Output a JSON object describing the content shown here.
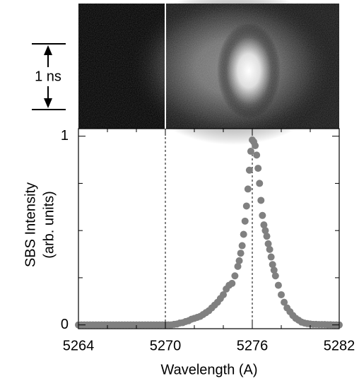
{
  "chart_data": {
    "type": "scatter",
    "xlabel": "Wavelength (A)",
    "ylabel": [
      "SBS Intensity",
      "(arb. units)"
    ],
    "streak_label": "1 ns",
    "x": [
      5264,
      5264.2,
      5264.4,
      5264.6,
      5264.8,
      5265,
      5265.2,
      5265.4,
      5265.6,
      5265.8,
      5266,
      5266.2,
      5266.4,
      5266.6,
      5266.8,
      5267,
      5267.2,
      5267.4,
      5267.6,
      5267.8,
      5268,
      5268.2,
      5268.4,
      5268.6,
      5268.8,
      5269,
      5269.2,
      5269.4,
      5269.6,
      5269.8,
      5270,
      5270.2,
      5270.4,
      5270.6,
      5270.8,
      5271,
      5271.2,
      5271.4,
      5271.6,
      5271.8,
      5272,
      5272.2,
      5272.4,
      5272.6,
      5272.8,
      5273,
      5273.2,
      5273.4,
      5273.6,
      5273.8,
      5274,
      5274.2,
      5274.4,
      5274.6,
      5274.8,
      5275,
      5275.1,
      5275.2,
      5275.3,
      5275.4,
      5275.5,
      5275.6,
      5275.7,
      5275.8,
      5275.9,
      5276,
      5276.1,
      5276.2,
      5276.3,
      5276.4,
      5276.5,
      5276.6,
      5276.7,
      5276.8,
      5276.9,
      5277,
      5277.1,
      5277.2,
      5277.3,
      5277.4,
      5277.5,
      5277.6,
      5277.8,
      5278,
      5278.2,
      5278.4,
      5278.6,
      5278.8,
      5279,
      5279.2,
      5279.4,
      5279.6,
      5279.8,
      5280,
      5280.2,
      5280.4,
      5280.6,
      5280.8,
      5281,
      5281.2,
      5281.4,
      5281.6,
      5281.8,
      5282
    ],
    "series": [
      {
        "color": "#808080",
        "values": [
          0,
          0,
          0,
          0,
          0,
          0,
          0,
          0,
          0,
          0,
          0,
          0,
          0,
          0,
          0,
          0,
          0,
          0,
          0,
          0,
          0,
          0,
          0,
          0,
          0,
          0,
          0,
          0,
          0,
          0,
          0,
          0,
          0,
          0.003,
          0.005,
          0.01,
          0.012,
          0.018,
          0.022,
          0.03,
          0.035,
          0.04,
          0.045,
          0.055,
          0.065,
          0.075,
          0.09,
          0.105,
          0.12,
          0.14,
          0.16,
          0.19,
          0.21,
          0.22,
          0.26,
          0.31,
          0.34,
          0.38,
          0.42,
          0.48,
          0.55,
          0.63,
          0.72,
          0.82,
          0.92,
          0.98,
          0.97,
          0.95,
          0.9,
          0.83,
          0.75,
          0.66,
          0.58,
          0.53,
          0.5,
          0.47,
          0.43,
          0.4,
          0.36,
          0.32,
          0.29,
          0.26,
          0.21,
          0.16,
          0.12,
          0.09,
          0.07,
          0.05,
          0.035,
          0.025,
          0.015,
          0.01,
          0.007,
          0.005,
          0.003,
          0.003,
          0.002,
          0.002,
          0.002,
          0.001,
          0.001,
          0,
          0,
          0
        ]
      }
    ],
    "xlim": [
      5264,
      5282
    ],
    "xticks": [
      5264,
      5270,
      5276,
      5282
    ],
    "xminorticks": [
      5266,
      5268,
      5272,
      5274,
      5278,
      5280
    ],
    "ylim": [
      -0.02,
      1.04
    ],
    "yticks": [
      0,
      1
    ],
    "yminorticks": [
      0.25,
      0.5,
      0.75
    ],
    "reference_lines": [
      5270,
      5276
    ]
  }
}
